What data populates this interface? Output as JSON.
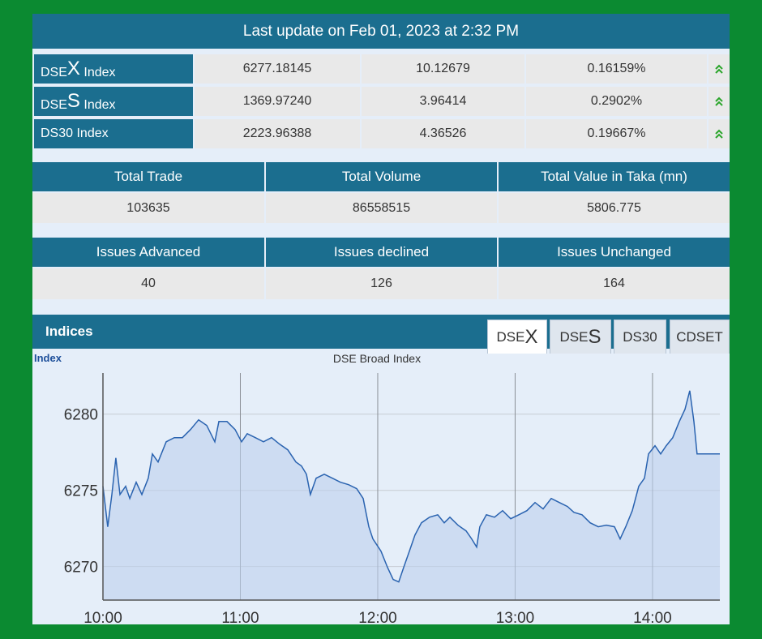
{
  "header": {
    "title": "Last update on Feb 01, 2023 at 2:32 PM"
  },
  "indices": [
    {
      "label": [
        "DSE",
        "X",
        " Index"
      ],
      "value": "6277.18145",
      "change": "10.12679",
      "percent": "0.16159%"
    },
    {
      "label": [
        "DSE",
        "S",
        " Index"
      ],
      "value": "1369.97240",
      "change": "3.96414",
      "percent": "0.2902%"
    },
    {
      "label": [
        "DS30 Index"
      ],
      "value": "2223.96388",
      "change": "4.36526",
      "percent": "0.19667%"
    }
  ],
  "summary_table": {
    "headers": [
      "Total Trade",
      "Total Volume",
      "Total Value in Taka (mn)"
    ],
    "values": [
      "103635",
      "86558515",
      "5806.775"
    ]
  },
  "issues_table": {
    "headers": [
      "Issues Advanced",
      "Issues declined",
      "Issues Unchanged"
    ],
    "values": [
      "40",
      "126",
      "164"
    ]
  },
  "indices_section": {
    "title": "Indices",
    "tabs": [
      [
        "DSE",
        "X"
      ],
      [
        "DSE",
        "S"
      ],
      [
        "DS30"
      ],
      [
        "CDSET"
      ]
    ]
  },
  "chart_data": {
    "type": "line",
    "title": "DSE Broad Index",
    "y_label": "Index",
    "x": [
      10,
      10.035,
      10.065,
      10.094,
      10.124,
      10.165,
      10.195,
      10.242,
      10.283,
      10.33,
      10.36,
      10.401,
      10.46,
      10.519,
      10.578,
      10.637,
      10.696,
      10.755,
      10.814,
      10.844,
      10.903,
      10.962,
      11.009,
      11.05,
      11.109,
      11.168,
      11.227,
      11.286,
      11.345,
      11.404,
      11.445,
      11.481,
      11.51,
      11.552,
      11.611,
      11.67,
      11.729,
      11.788,
      11.847,
      11.894,
      11.935,
      11.965,
      12.024,
      12.071,
      12.112,
      12.153,
      12.189,
      12.23,
      12.271,
      12.318,
      12.377,
      12.437,
      12.484,
      12.525,
      12.584,
      12.643,
      12.684,
      12.72,
      12.743,
      12.791,
      12.85,
      12.909,
      12.968,
      13.027,
      13.086,
      13.145,
      13.204,
      13.263,
      13.322,
      13.381,
      13.428,
      13.487,
      13.546,
      13.605,
      13.664,
      13.723,
      13.764,
      13.805,
      13.853,
      13.9,
      13.941,
      13.971,
      14.018,
      14.059,
      14.1,
      14.147,
      14.195,
      14.236,
      14.271,
      14.301,
      14.324,
      14.49
    ],
    "series": [
      {
        "name": "DSEX",
        "color": "#2a63b0",
        "values": [
          6275.27,
          6272.61,
          6274.73,
          6277.13,
          6274.73,
          6275.27,
          6274.47,
          6275.53,
          6274.73,
          6275.8,
          6277.39,
          6276.86,
          6278.19,
          6278.46,
          6278.46,
          6278.99,
          6279.63,
          6279.26,
          6278.19,
          6279.52,
          6279.52,
          6278.99,
          6278.19,
          6278.72,
          6278.46,
          6278.19,
          6278.46,
          6278.03,
          6277.66,
          6276.86,
          6276.6,
          6276.06,
          6274.73,
          6275.8,
          6276.06,
          6275.8,
          6275.53,
          6275.37,
          6275.11,
          6274.47,
          6272.61,
          6271.81,
          6271.01,
          6269.95,
          6269.15,
          6268.99,
          6269.95,
          6271.01,
          6272.07,
          6272.87,
          6273.24,
          6273.4,
          6272.87,
          6273.24,
          6272.71,
          6272.34,
          6271.81,
          6271.28,
          6272.61,
          6273.4,
          6273.24,
          6273.67,
          6273.14,
          6273.4,
          6273.67,
          6274.2,
          6273.78,
          6274.47,
          6274.2,
          6273.94,
          6273.56,
          6273.4,
          6272.87,
          6272.61,
          6272.71,
          6272.61,
          6271.81,
          6272.61,
          6273.67,
          6275.27,
          6275.8,
          6277.39,
          6277.93,
          6277.39,
          6277.93,
          6278.46,
          6279.52,
          6280.32,
          6281.54,
          6279.52,
          6277.39,
          6277.39
        ]
      }
    ],
    "xlim": [
      10,
      14.49
    ],
    "ylim": [
      6267.8,
      6282.7
    ],
    "xticks": [
      {
        "value": 10,
        "label": "10:00"
      },
      {
        "value": 11,
        "label": "11:00"
      },
      {
        "value": 12,
        "label": "12:00"
      },
      {
        "value": 13,
        "label": "13:00"
      },
      {
        "value": 14,
        "label": "14:00"
      }
    ],
    "yticks": [
      6270,
      6275,
      6280
    ],
    "grid": true
  }
}
